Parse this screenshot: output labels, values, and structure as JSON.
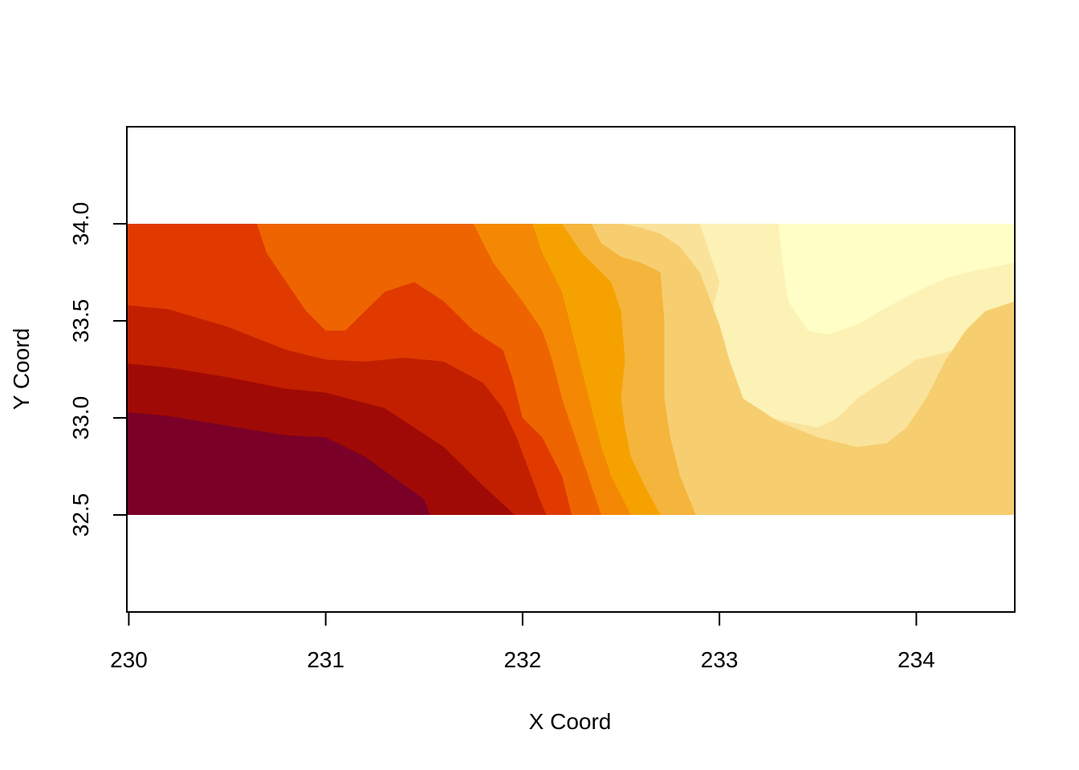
{
  "chart_data": {
    "type": "heatmap",
    "title": "",
    "xlabel": "X Coord",
    "ylabel": "Y Coord",
    "xlim": [
      229.99,
      234.5
    ],
    "ylim": [
      32.0,
      34.5
    ],
    "x_ticks": [
      {
        "value": 230,
        "label": "230"
      },
      {
        "value": 231,
        "label": "231"
      },
      {
        "value": 232,
        "label": "232"
      },
      {
        "value": 233,
        "label": "233"
      },
      {
        "value": 234,
        "label": "234"
      }
    ],
    "y_ticks": [
      {
        "value": 32.5,
        "label": "32.5"
      },
      {
        "value": 33.0,
        "label": "33.0"
      },
      {
        "value": 33.5,
        "label": "33.5"
      },
      {
        "value": 34.0,
        "label": "34.0"
      }
    ],
    "grid": false,
    "legend": "none",
    "raster_extent": {
      "x": [
        229.99,
        234.5
      ],
      "y": [
        32.5,
        34.0
      ]
    },
    "palette": [
      "#7A0027",
      "#A00A06",
      "#C21F00",
      "#E03A00",
      "#EE6400",
      "#F48703",
      "#F5A200",
      "#F5B43B",
      "#F6CE70",
      "#FAE29A",
      "#FCF2B6",
      "#FFFEC6"
    ],
    "boundaries": [
      {
        "x": [
          229.99,
          230.2,
          230.5,
          230.8,
          231.0,
          231.2,
          231.5,
          231.53
        ],
        "y": [
          33.03,
          33.01,
          32.96,
          32.91,
          32.9,
          32.8,
          32.58,
          32.5
        ]
      },
      {
        "x": [
          229.99,
          230.2,
          230.5,
          230.8,
          231.0,
          231.3,
          231.6,
          231.8,
          231.96
        ],
        "y": [
          33.28,
          33.26,
          33.21,
          33.15,
          33.13,
          33.05,
          32.85,
          32.65,
          32.5
        ]
      },
      {
        "x": [
          229.99,
          230.2,
          230.5,
          230.8,
          231.0,
          231.2,
          231.4,
          231.6,
          231.8,
          231.9,
          231.97,
          232.08,
          232.12
        ],
        "y": [
          33.58,
          33.56,
          33.47,
          33.35,
          33.3,
          33.29,
          33.31,
          33.29,
          33.18,
          33.05,
          32.9,
          32.6,
          32.5
        ]
      },
      {
        "x": [
          230.65,
          230.7,
          230.8,
          230.9,
          231.0,
          231.1,
          231.2,
          231.3,
          231.45,
          231.6,
          231.75,
          231.9,
          231.95,
          232.0,
          232.1,
          232.2,
          232.25
        ],
        "y": [
          34.0,
          33.85,
          33.7,
          33.55,
          33.45,
          33.45,
          33.55,
          33.65,
          33.7,
          33.6,
          33.45,
          33.35,
          33.2,
          33.0,
          32.9,
          32.7,
          32.5
        ]
      },
      {
        "x": [
          231.75,
          231.85,
          232.0,
          232.1,
          232.15,
          232.2,
          232.25,
          232.3,
          232.35,
          232.4
        ],
        "y": [
          34.0,
          33.8,
          33.6,
          33.45,
          33.3,
          33.1,
          32.95,
          32.8,
          32.65,
          32.5
        ]
      },
      {
        "x": [
          232.05,
          232.1,
          232.2,
          232.25,
          232.3,
          232.35,
          232.4,
          232.45,
          232.55
        ],
        "y": [
          34.0,
          33.85,
          33.65,
          33.45,
          33.25,
          33.05,
          32.85,
          32.7,
          32.5
        ]
      },
      {
        "x": [
          232.2,
          232.3,
          232.45,
          232.5,
          232.52,
          232.5,
          232.52,
          232.55,
          232.62,
          232.7
        ],
        "y": [
          34.0,
          33.85,
          33.7,
          33.55,
          33.3,
          33.1,
          32.95,
          32.8,
          32.65,
          32.5
        ]
      },
      {
        "x": [
          232.35,
          232.4,
          232.5,
          232.6,
          232.7,
          232.72,
          232.72,
          232.75,
          232.8,
          232.88
        ],
        "y": [
          34.0,
          33.9,
          33.83,
          33.8,
          33.75,
          33.5,
          33.1,
          32.9,
          32.7,
          32.5
        ]
      },
      {
        "x": [
          232.5,
          232.6,
          232.7,
          232.8,
          232.9,
          233.0,
          233.05,
          233.12,
          233.3,
          233.5,
          233.7,
          233.85,
          233.95,
          234.05,
          234.15,
          234.25,
          234.35,
          234.5
        ],
        "y": [
          34.0,
          33.98,
          33.95,
          33.88,
          33.75,
          33.48,
          33.3,
          33.1,
          32.98,
          32.9,
          32.85,
          32.87,
          32.95,
          33.1,
          33.3,
          33.45,
          33.55,
          33.6
        ]
      },
      {
        "x": [
          232.9,
          232.95,
          233.0,
          232.95,
          233.0,
          233.1,
          233.3,
          233.5,
          233.6,
          233.7,
          233.85,
          234.0,
          234.2,
          234.35,
          234.5
        ],
        "y": [
          34.0,
          33.85,
          33.7,
          33.5,
          33.25,
          33.05,
          32.99,
          32.95,
          33.0,
          33.1,
          33.2,
          33.3,
          33.35,
          33.38,
          33.42
        ]
      },
      {
        "x": [
          233.3,
          233.32,
          233.35,
          233.45,
          233.55,
          233.7,
          233.85,
          234.0,
          234.15,
          234.3,
          234.5
        ],
        "y": [
          34.0,
          33.8,
          33.6,
          33.45,
          33.43,
          33.48,
          33.57,
          33.65,
          33.72,
          33.76,
          33.8
        ]
      }
    ]
  }
}
